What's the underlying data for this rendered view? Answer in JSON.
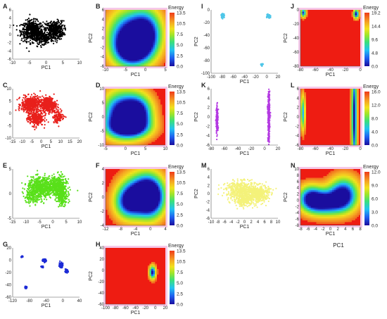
{
  "colors": {
    "black": "#000000",
    "red": "#e8201c",
    "green": "#59e01a",
    "blue": "#1d2bd6",
    "cyan": "#4fc6e8",
    "purple": "#b43ae2",
    "yellow": "#f4f27a",
    "bg_red": "#ee1c12",
    "border_pink": "#f6c8e8"
  },
  "colorbar": {
    "title": "Energy",
    "stops": [
      "#1a0d9e",
      "#1f5ef0",
      "#22c3f2",
      "#3be07a",
      "#9ee52a",
      "#f2e21e",
      "#f5a623",
      "#ef3b1a"
    ]
  },
  "chart_data": [
    {
      "id": "A",
      "type": "scatter",
      "xlabel": "PC1",
      "ylabel": "PC2",
      "color": "black",
      "xticks": [
        "-10",
        "-5",
        "0",
        "5",
        "10"
      ],
      "yticks": [
        "-6",
        "-4",
        "-2",
        "0",
        "2",
        "4",
        "6"
      ],
      "xlim": [
        -12,
        12
      ],
      "ylim": [
        -7,
        7
      ],
      "clusters": [
        [
          -5,
          1,
          3.5,
          2.6,
          550
        ],
        [
          3,
          1.2,
          3,
          2.4,
          420
        ],
        [
          -1,
          -1,
          3,
          1.5,
          200
        ]
      ]
    },
    {
      "id": "B",
      "type": "heatmap",
      "xlabel": "PC1",
      "ylabel": "PC2",
      "xticks": [
        "-10",
        "-5",
        "0",
        "5"
      ],
      "yticks": [
        "-6",
        "-4",
        "-2",
        "0",
        "2",
        "4",
        "6"
      ],
      "xlim": [
        -12,
        10
      ],
      "ylim": [
        -7,
        7
      ],
      "colorbar_ticks": [
        "0.0",
        "2.5",
        "5.0",
        "7.5",
        "10.5",
        "13.5"
      ],
      "wells": [
        [
          -4,
          0,
          5,
          4.5,
          1
        ],
        [
          3,
          1,
          4,
          4,
          1
        ],
        [
          -2,
          -3,
          4,
          2.5,
          0.7
        ]
      ]
    },
    {
      "id": "C",
      "type": "scatter",
      "xlabel": "PC1",
      "ylabel": "PC2",
      "color": "red",
      "xticks": [
        "-15",
        "-10",
        "-5",
        "0",
        "5",
        "10",
        "15",
        "20"
      ],
      "yticks": [
        "-10",
        "-5",
        "0",
        "5",
        "10"
      ],
      "xlim": [
        -17,
        21
      ],
      "ylim": [
        -13,
        12
      ],
      "clusters": [
        [
          -7,
          4,
          4.5,
          3.5,
          500
        ],
        [
          3,
          4,
          4,
          3.5,
          450
        ],
        [
          -4,
          -3,
          4,
          3.5,
          300
        ],
        [
          9,
          -2,
          3,
          3,
          120
        ]
      ]
    },
    {
      "id": "D",
      "type": "heatmap",
      "xlabel": "PC1",
      "ylabel": "PC2",
      "xticks": [
        "-5",
        "0",
        "5",
        "10"
      ],
      "yticks": [
        "-10",
        "-5",
        "0",
        "5",
        "10"
      ],
      "xlim": [
        -10,
        14
      ],
      "ylim": [
        -12,
        11
      ],
      "colorbar_ticks": [
        "0.0",
        "2.5",
        "5.0",
        "7.5",
        "10.5",
        "13.5"
      ],
      "wells": [
        [
          -4,
          1,
          5,
          6,
          1
        ],
        [
          3,
          1,
          4,
          5,
          1
        ],
        [
          -1,
          -5,
          6,
          3,
          0.8
        ]
      ]
    },
    {
      "id": "E",
      "type": "scatter",
      "xlabel": "PC1",
      "ylabel": "PC2",
      "color": "green",
      "xticks": [
        "-15",
        "-10",
        "-5",
        "0",
        "5",
        "10"
      ],
      "yticks": [
        "-5",
        "0",
        "5"
      ],
      "xlim": [
        -16,
        11
      ],
      "ylim": [
        -8,
        8
      ],
      "clusters": [
        [
          -5,
          2,
          4.5,
          3,
          550
        ],
        [
          2,
          2.5,
          3.5,
          3,
          450
        ],
        [
          4,
          -1,
          2,
          2.5,
          200
        ],
        [
          -8,
          -1,
          3,
          2,
          120
        ]
      ]
    },
    {
      "id": "F",
      "type": "heatmap",
      "xlabel": "PC1",
      "ylabel": "PC2",
      "xticks": [
        "-12",
        "-8",
        "-4",
        "0",
        "4"
      ],
      "yticks": [
        "-4",
        "-2",
        "0",
        "2",
        "4"
      ],
      "xlim": [
        -13,
        6
      ],
      "ylim": [
        -5,
        5
      ],
      "colorbar_ticks": [
        "0.0",
        "2.5",
        "5.0",
        "7.5",
        "10.5",
        "13.5"
      ],
      "wells": [
        [
          -2,
          0.5,
          4,
          2.5,
          0.9
        ],
        [
          1.5,
          0,
          3,
          2.5,
          1
        ],
        [
          -6,
          -1,
          3,
          2,
          0.7
        ]
      ]
    },
    {
      "id": "G",
      "type": "scatter",
      "xlabel": "PC1",
      "ylabel": "PC2",
      "color": "blue",
      "xticks": [
        "-120",
        "-80",
        "-40",
        "0",
        "40"
      ],
      "yticks": [
        "-60",
        "-40",
        "-20",
        "0",
        "20"
      ],
      "xlim": [
        -130,
        50
      ],
      "ylim": [
        -70,
        40
      ],
      "clusters": [
        [
          -45,
          12,
          5,
          3,
          60
        ],
        [
          -50,
          -2,
          3,
          2,
          25
        ],
        [
          0,
          2,
          4,
          5,
          160
        ],
        [
          15,
          -12,
          4,
          3,
          60
        ],
        [
          -95,
          -48,
          3,
          2,
          30
        ],
        [
          -105,
          20,
          3,
          2,
          15
        ]
      ]
    },
    {
      "id": "H",
      "type": "heatmap",
      "xlabel": "PC1",
      "ylabel": "PC2",
      "xticks": [
        "-100",
        "-80",
        "-60",
        "-40",
        "-20",
        "0",
        "20"
      ],
      "yticks": [
        "-60",
        "-40",
        "-20",
        "0",
        "20",
        "40"
      ],
      "xlim": [
        -110,
        30
      ],
      "ylim": [
        -65,
        50
      ],
      "colorbar_ticks": [
        "0.0",
        "2.5",
        "5.0",
        "7.5",
        "10.5",
        "13.5"
      ],
      "wells": [
        [
          0,
          0,
          5,
          9,
          1
        ]
      ]
    },
    {
      "id": "I",
      "type": "scatter",
      "xlabel": "PC1",
      "ylabel": "PC2",
      "color": "cyan",
      "xticks": [
        "-100",
        "-80",
        "-60",
        "-40",
        "-20",
        "0",
        "20"
      ],
      "yticks": [
        "-100",
        "-80",
        "-60",
        "-40",
        "-20",
        "0"
      ],
      "xlim": [
        -100,
        25
      ],
      "ylim": [
        -105,
        5
      ],
      "clusters": [
        [
          -78,
          -5,
          2.5,
          3,
          80
        ],
        [
          8,
          -6,
          3,
          2.5,
          120
        ],
        [
          -5,
          -90,
          2,
          1.5,
          25
        ]
      ]
    },
    {
      "id": "J",
      "type": "heatmap",
      "xlabel": "PC1",
      "ylabel": "PC2",
      "xticks": [
        "-80",
        "-60",
        "-40",
        "-20",
        "0"
      ],
      "yticks": [
        "-80",
        "-60",
        "-40",
        "-20",
        "0"
      ],
      "xlim": [
        -90,
        12
      ],
      "ylim": [
        -90,
        5
      ],
      "colorbar_ticks": [
        "0.0",
        "4.8",
        "9.6",
        "14.4",
        "19.2"
      ],
      "wells": [
        [
          -85,
          0,
          3,
          5,
          0.9
        ],
        [
          5,
          -2,
          3,
          5,
          1
        ]
      ]
    },
    {
      "id": "K",
      "type": "scatter",
      "xlabel": "PC1",
      "ylabel": "PC2",
      "color": "purple",
      "xticks": [
        "-80",
        "-60",
        "-40",
        "-20",
        "0",
        "20"
      ],
      "yticks": [
        "-6",
        "-4",
        "-2",
        "0",
        "2",
        "4",
        "6"
      ],
      "xlim": [
        -90,
        20
      ],
      "ylim": [
        -7,
        7
      ],
      "clusters": [
        [
          -80,
          -1,
          1.5,
          3,
          160
        ],
        [
          5,
          0,
          1.4,
          5.5,
          350
        ]
      ]
    },
    {
      "id": "L",
      "type": "heatmap",
      "xlabel": "PC1",
      "ylabel": "PC2",
      "xticks": [
        "-80",
        "-60",
        "-40",
        "-20",
        "0"
      ],
      "yticks": [
        "-6",
        "-4",
        "-2",
        "0",
        "2",
        "4",
        "6"
      ],
      "xlim": [
        -90,
        10
      ],
      "ylim": [
        -7,
        7
      ],
      "colorbar_ticks": [
        "0.0",
        "4.0",
        "8.0",
        "12.0",
        "16.0"
      ],
      "wells": [
        [
          0,
          0,
          3,
          9,
          1
        ],
        [
          -86,
          1,
          2.5,
          3,
          0.7
        ]
      ]
    },
    {
      "id": "M",
      "type": "scatter",
      "xlabel": "PC1",
      "ylabel": "PC2",
      "color": "yellow",
      "xticks": [
        "-10",
        "-8",
        "-6",
        "-4",
        "-2",
        "0",
        "2",
        "4",
        "6",
        "8",
        "10"
      ],
      "yticks": [
        "-6",
        "-4",
        "-2",
        "0",
        "2",
        "4",
        "6"
      ],
      "xlim": [
        -10,
        10
      ],
      "ylim": [
        -7,
        7
      ],
      "clusters": [
        [
          -1,
          1,
          4,
          2.2,
          500
        ],
        [
          4,
          0,
          3,
          2.2,
          400
        ],
        [
          0,
          -2,
          3,
          1.5,
          200
        ]
      ]
    },
    {
      "id": "N",
      "type": "heatmap",
      "xlabel": "PC1",
      "ylabel": "PC2",
      "xticks": [
        "-8",
        "-6",
        "-4",
        "-2",
        "0",
        "2",
        "4",
        "6",
        "8"
      ],
      "yticks": [
        "-8",
        "-6",
        "-4",
        "-2",
        "0",
        "2",
        "4",
        "6",
        "8",
        "10"
      ],
      "xlim": [
        -9,
        9
      ],
      "ylim": [
        -9,
        11
      ],
      "colorbar_ticks": [
        "0.0",
        "3.0",
        "6.0",
        "9.0",
        "12.0"
      ],
      "wells": [
        [
          -2,
          -1,
          4,
          3,
          1
        ],
        [
          4,
          2,
          3,
          4,
          1
        ],
        [
          -6,
          1,
          2.5,
          3,
          0.7
        ]
      ]
    }
  ],
  "footer_label": "PC1"
}
